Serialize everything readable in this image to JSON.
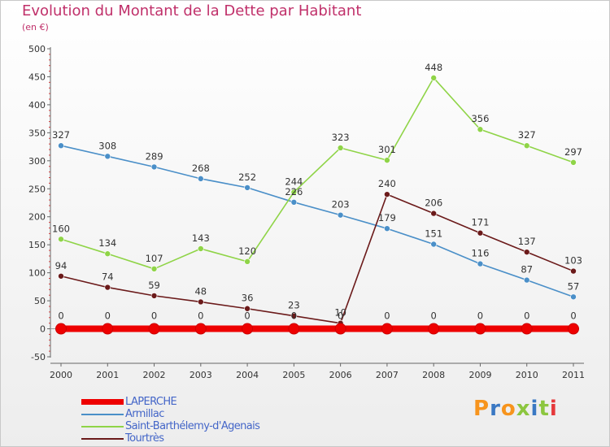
{
  "title": "Evolution du Montant de la Dette par Habitant",
  "subtitle": "(en €)",
  "logo": {
    "text": "Proxiti",
    "colors": [
      "#f7941d",
      "#3a78c3",
      "#f7941d",
      "#8cc63f",
      "#3a78c3",
      "#8cc63f",
      "#e5383b"
    ]
  },
  "chart_data": {
    "type": "line",
    "x": [
      "2000",
      "2001",
      "2002",
      "2003",
      "2004",
      "2005",
      "2006",
      "2007",
      "2008",
      "2009",
      "2010",
      "2011"
    ],
    "yticks": [
      "500",
      "450",
      "400",
      "350",
      "300",
      "250",
      "200",
      "150",
      "100",
      "50",
      "0",
      "-50"
    ],
    "ylim": [
      -50,
      500
    ],
    "grid": false,
    "legend_position": "bottom-left",
    "series": [
      {
        "name": "LAPERCHE",
        "color": "#ee0000",
        "values": [
          0,
          0,
          0,
          0,
          0,
          0,
          0,
          0,
          0,
          0,
          0,
          0
        ],
        "labels": [
          "0",
          "0",
          "0",
          "0",
          "0",
          "0",
          "0",
          "0",
          "0",
          "0",
          "0",
          "0"
        ]
      },
      {
        "name": "Armillac",
        "color": "#4a8fc8",
        "values": [
          327,
          308,
          289,
          268,
          252,
          226,
          203,
          179,
          151,
          116,
          87,
          57
        ],
        "labels": [
          "327",
          "308",
          "289",
          "268",
          "252",
          "226",
          "203",
          "179",
          "151",
          "116",
          "87",
          "57"
        ]
      },
      {
        "name": "Saint-Barthélemy-d'Agenais",
        "color": "#8fd447",
        "values": [
          160,
          134,
          107,
          143,
          120,
          244,
          323,
          301,
          448,
          356,
          327,
          297
        ],
        "labels": [
          "160",
          "134",
          "107",
          "143",
          "120",
          "244",
          "323",
          "301",
          "448",
          "356",
          "327",
          "297"
        ]
      },
      {
        "name": "Tourtrès",
        "color": "#6b1a1a",
        "values": [
          94,
          74,
          59,
          48,
          36,
          23,
          10,
          240,
          206,
          171,
          137,
          103
        ],
        "labels": [
          "94",
          "74",
          "59",
          "48",
          "36",
          "23",
          "10",
          "240",
          "206",
          "171",
          "137",
          "103"
        ]
      }
    ]
  }
}
